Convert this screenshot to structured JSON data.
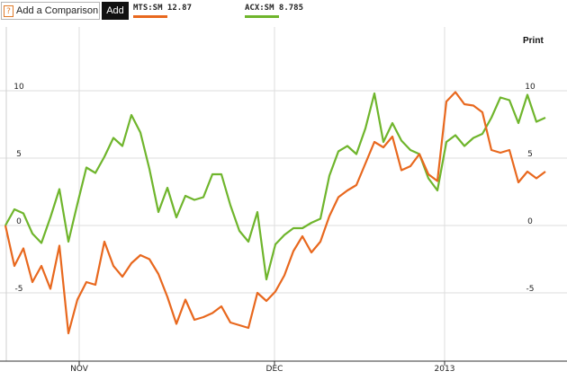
{
  "toolbar": {
    "compare_icon": "?",
    "compare_placeholder": "Add a Comparison",
    "add_label": "Add",
    "print_label": "Print"
  },
  "legend": [
    {
      "label": "MTS:SM 12.87",
      "color": "#e8681e"
    },
    {
      "label": "ACX:SM 8.785",
      "color": "#6fb52c"
    }
  ],
  "chart_data": {
    "type": "line",
    "x_labels": [
      "NOV",
      "DEC",
      "2013"
    ],
    "y_ticks": [
      10,
      5,
      0,
      -5
    ],
    "ylim": [
      -10,
      14
    ],
    "grid": true,
    "series": [
      {
        "name": "MTS:SM 12.87",
        "color": "#e8681e",
        "values": [
          0,
          -3,
          -1.7,
          -4.2,
          -3,
          -4.7,
          -1.5,
          -8,
          -5.5,
          -4.2,
          -4.4,
          -1.2,
          -3,
          -3.8,
          -2.8,
          -2.2,
          -2.5,
          -3.6,
          -5.3,
          -7.3,
          -5.5,
          -7,
          -6.8,
          -6.5,
          -6,
          -7.2,
          -7.4,
          -7.6,
          -5,
          -5.6,
          -4.9,
          -3.7,
          -1.9,
          -0.8,
          -2,
          -1.2,
          0.7,
          2.1,
          2.6,
          3,
          4.6,
          6.2,
          5.8,
          6.6,
          4.1,
          4.4,
          5.3,
          3.8,
          3.3,
          9.2,
          9.9,
          9,
          8.9,
          8.4,
          5.6,
          5.4,
          5.6,
          3.2,
          4,
          3.5,
          4
        ]
      },
      {
        "name": "ACX:SM 8.785",
        "color": "#6fb52c",
        "values": [
          0,
          1.2,
          0.9,
          -0.6,
          -1.3,
          0.6,
          2.7,
          -1.2,
          1.6,
          4.3,
          3.9,
          5.1,
          6.5,
          5.9,
          8.2,
          6.9,
          4.2,
          1,
          2.8,
          0.6,
          2.2,
          1.9,
          2.1,
          3.8,
          3.8,
          1.5,
          -0.4,
          -1.2,
          1,
          -4,
          -1.4,
          -0.7,
          -0.2,
          -0.2,
          0.2,
          0.5,
          3.7,
          5.5,
          5.9,
          5.3,
          7.2,
          9.8,
          6.2,
          7.6,
          6.3,
          5.6,
          5.3,
          3.5,
          2.6,
          6.2,
          6.7,
          5.9,
          6.5,
          6.8,
          8,
          9.5,
          9.3,
          7.6,
          9.7,
          7.7,
          8
        ]
      }
    ]
  }
}
